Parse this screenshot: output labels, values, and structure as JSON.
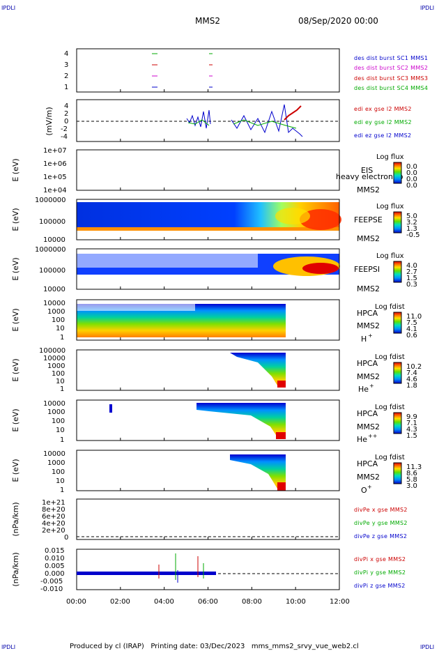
{
  "corner_label": "IPDLI",
  "header": {
    "title": "MMS2",
    "date": "08/Sep/2020 00:00"
  },
  "footer": {
    "text": "Produced by cl (IRAP)   Printing date: 03/Dec/2023   mms_mms2_srvy_vue_web2.cl"
  },
  "x_axis": {
    "ticks": [
      "00:00",
      "02:00",
      "04:00",
      "06:00",
      "08:00",
      "10:00",
      "12:00"
    ]
  },
  "panels": {
    "p1": {
      "ticks": [
        "4",
        "3",
        "2",
        "1"
      ],
      "legend": [
        {
          "text": "des dist burst SC1 MMS1",
          "color": "#0000cc"
        },
        {
          "text": "des dist burst SC2 MMS2",
          "color": "#cc00cc"
        },
        {
          "text": "des dist burst SC3 MMS3",
          "color": "#cc0000"
        },
        {
          "text": "des dist burst SC4 MMS4",
          "color": "#00aa00"
        }
      ]
    },
    "p2": {
      "ylabel": "(mV/m)",
      "ticks": [
        "4",
        "2",
        "0",
        "-2",
        "-4"
      ],
      "legend": [
        {
          "text": "edi ex gse l2 MMS2",
          "color": "#cc0000"
        },
        {
          "text": "edi ey gse l2 MMS2",
          "color": "#00aa00"
        },
        {
          "text": "edi ez gse l2 MMS2",
          "color": "#0000cc"
        }
      ]
    },
    "p3": {
      "ylabel": "E (eV)",
      "ticks": [
        "1e+07",
        "1e+06",
        "1e+05",
        "1e+04"
      ],
      "side1": "EIS",
      "side2": "MMS2",
      "overlay": "heavy electron to",
      "cb_title": "Log flux",
      "cb_ticks": [
        "0.0",
        "0.0",
        "0.0",
        "0.0"
      ]
    },
    "p4": {
      "ylabel": "E (eV)",
      "ticks": [
        "1000000",
        "100000",
        "10000"
      ],
      "side1": "FEEPSE",
      "side2": "MMS2",
      "cb_title": "Log flux",
      "cb_ticks": [
        "5.0",
        "3.2",
        "1.3",
        "-0.5"
      ]
    },
    "p5": {
      "ylabel": "E (eV)",
      "ticks": [
        "1000000",
        "100000",
        "10000"
      ],
      "side1": "FEEPSI",
      "side2": "MMS2",
      "cb_title": "Log flux",
      "cb_ticks": [
        "4.0",
        "2.7",
        "1.5",
        "0.3"
      ]
    },
    "p6": {
      "ylabel": "E (eV)",
      "ticks": [
        "10000",
        "1000",
        "100",
        "10",
        "1"
      ],
      "side1": "HPCA",
      "side2": "MMS2",
      "species": "H",
      "charge": "+",
      "cb_title": "Log fdist",
      "cb_ticks": [
        "11.0",
        "7.5",
        "4.1",
        "0.6"
      ]
    },
    "p7": {
      "ylabel": "E (eV)",
      "ticks": [
        "100000",
        "10000",
        "1000",
        "100",
        "10",
        "1"
      ],
      "side1": "HPCA",
      "side2": "MMS2",
      "species": "He",
      "charge": "+",
      "cb_title": "Log fdist",
      "cb_ticks": [
        "10.2",
        "7.4",
        "4.6",
        "1.8"
      ]
    },
    "p8": {
      "ylabel": "E (eV)",
      "ticks": [
        "10000",
        "1000",
        "100",
        "10",
        "1"
      ],
      "side1": "HPCA",
      "side2": "MMS2",
      "species": "He",
      "charge": "++",
      "cb_title": "Log fdist",
      "cb_ticks": [
        "9.9",
        "7.1",
        "4.3",
        "1.5"
      ]
    },
    "p9": {
      "ylabel": "E (eV)",
      "ticks": [
        "10000",
        "1000",
        "100",
        "10",
        "1"
      ],
      "side1": "HPCA",
      "side2": "MMS2",
      "species": "O",
      "charge": "+",
      "cb_title": "Log fdist",
      "cb_ticks": [
        "11.3",
        "8.6",
        "5.8",
        "3.0"
      ]
    },
    "p10": {
      "ylabel": "(nPa/km)",
      "ticks": [
        "1e+21",
        "8e+20",
        "6e+20",
        "4e+20",
        "2e+20",
        "0"
      ],
      "legend": [
        {
          "text": "divPe x gse MMS2",
          "color": "#cc0000"
        },
        {
          "text": "divPe y gse MMS2",
          "color": "#00aa00"
        },
        {
          "text": "divPe z gse MMS2",
          "color": "#0000cc"
        }
      ]
    },
    "p11": {
      "ylabel": "(nPa/km)",
      "ticks": [
        "0.015",
        "0.010",
        "0.005",
        "0.000",
        "-0.005",
        "-0.010"
      ],
      "legend": [
        {
          "text": "divPi x gse MMS2",
          "color": "#cc0000"
        },
        {
          "text": "divPi y gse MMS2",
          "color": "#00aa00"
        },
        {
          "text": "divPi z gse MMS2",
          "color": "#0000cc"
        }
      ]
    }
  },
  "chart_data": {
    "type": "line",
    "x_range_hours": [
      0,
      12
    ],
    "x": [
      "00:00",
      "02:00",
      "04:00",
      "06:00",
      "08:00",
      "10:00",
      "12:00"
    ],
    "panels": [
      {
        "type": "scatter",
        "name": "des dist burst",
        "ylim": [
          1,
          4
        ],
        "series": [
          {
            "name": "des dist burst SC1 MMS1",
            "y": 1,
            "intervals_hours": [
              [
                3.45,
                3.6
              ],
              [
                6.05,
                6.12
              ]
            ],
            "color": "#0000cc"
          },
          {
            "name": "des dist burst SC2 MMS2",
            "y": 2,
            "intervals_hours": [
              [
                3.45,
                3.6
              ],
              [
                6.05,
                6.12
              ]
            ],
            "color": "#cc00cc"
          },
          {
            "name": "des dist burst SC3 MMS3",
            "y": 3,
            "intervals_hours": [
              [
                3.45,
                3.6
              ],
              [
                6.05,
                6.12
              ]
            ],
            "color": "#cc0000"
          },
          {
            "name": "des dist burst SC4 MMS4",
            "y": 4,
            "intervals_hours": [
              [
                3.45,
                3.6
              ],
              [
                6.05,
                6.12
              ]
            ],
            "color": "#00aa00"
          }
        ]
      },
      {
        "type": "line",
        "ylabel": "(mV/m)",
        "ylim": [
          -5,
          5
        ],
        "series": [
          {
            "name": "edi ex gse l2 MMS2",
            "color": "#cc0000",
            "x": [
              9.3,
              9.4,
              9.5,
              9.6,
              9.7,
              9.8,
              9.9,
              10.0,
              10.1
            ],
            "y": [
              0,
              0.5,
              1,
              1.5,
              2,
              2.5,
              3,
              3.5,
              4
            ]
          },
          {
            "name": "edi ey gse l2 MMS2",
            "color": "#00aa00",
            "x": [
              5.0,
              5.5,
              6.0,
              7.0,
              8.0,
              9.0,
              9.5,
              10.0
            ],
            "y": [
              0,
              -1,
              1,
              0,
              -0.5,
              0,
              0.5,
              -1.5
            ]
          },
          {
            "name": "edi ez gse l2 MMS2",
            "color": "#0000cc",
            "x": [
              5.0,
              5.5,
              6.0,
              7.0,
              8.0,
              9.0,
              9.5,
              10.0
            ],
            "y": [
              0.5,
              2,
              -2,
              1,
              -1.5,
              1,
              -2,
              -3
            ]
          }
        ]
      },
      {
        "type": "heatmap",
        "name": "EIS",
        "ylabel": "E (eV)",
        "ylim": [
          10000.0,
          10000000.0
        ],
        "colorbar": [
          0,
          0
        ]
      },
      {
        "type": "heatmap",
        "name": "FEEPSE",
        "ylabel": "E (eV)",
        "ylim": [
          10000.0,
          1000000.0
        ],
        "colorbar": [
          -0.5,
          5.0
        ]
      },
      {
        "type": "heatmap",
        "name": "FEEPSI",
        "ylabel": "E (eV)",
        "ylim": [
          10000.0,
          1000000.0
        ],
        "colorbar": [
          0.3,
          4.0
        ]
      },
      {
        "type": "heatmap",
        "name": "HPCA H+",
        "ylabel": "E (eV)",
        "ylim": [
          1,
          10000.0
        ],
        "colorbar": [
          0.6,
          11.0
        ]
      },
      {
        "type": "heatmap",
        "name": "HPCA He+",
        "ylabel": "E (eV)",
        "ylim": [
          1,
          100000.0
        ],
        "colorbar": [
          1.8,
          10.2
        ]
      },
      {
        "type": "heatmap",
        "name": "HPCA He++",
        "ylabel": "E (eV)",
        "ylim": [
          1,
          10000.0
        ],
        "colorbar": [
          1.5,
          9.9
        ]
      },
      {
        "type": "heatmap",
        "name": "HPCA O+",
        "ylabel": "E (eV)",
        "ylim": [
          1,
          10000.0
        ],
        "colorbar": [
          3.0,
          11.3
        ]
      },
      {
        "type": "line",
        "ylabel": "(nPa/km)",
        "ylim": [
          0,
          1e+21
        ],
        "series": [
          {
            "name": "divPe x gse MMS2",
            "color": "#cc0000",
            "y": []
          },
          {
            "name": "divPe y gse MMS2",
            "color": "#00aa00",
            "y": []
          },
          {
            "name": "divPe z gse MMS2",
            "color": "#0000cc",
            "y": []
          }
        ]
      },
      {
        "type": "line",
        "ylabel": "(nPa/km)",
        "ylim": [
          -0.01,
          0.015
        ],
        "series": [
          {
            "name": "divPi x gse MMS2",
            "color": "#cc0000",
            "spikes_hours": [
              [
                3.6,
                0.006
              ],
              [
                5.5,
                0.011
              ]
            ]
          },
          {
            "name": "divPi y gse MMS2",
            "color": "#00aa00",
            "spikes_hours": [
              [
                3.7,
                0.013
              ],
              [
                6.0,
                0.004
              ]
            ]
          },
          {
            "name": "divPi z gse MMS2",
            "color": "#0000cc",
            "spikes_hours": [
              [
                3.7,
                -0.006
              ],
              [
                6.1,
                -0.005
              ]
            ]
          }
        ]
      }
    ]
  }
}
